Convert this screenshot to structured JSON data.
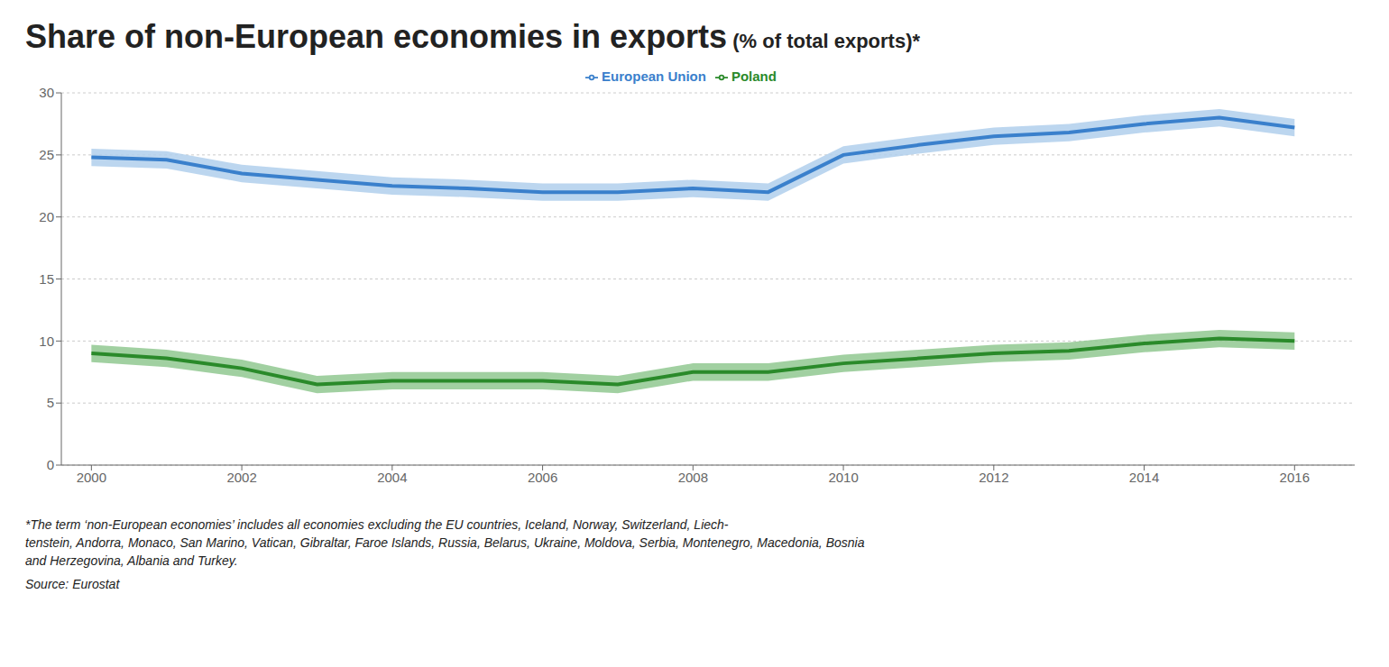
{
  "chart_data": {
    "type": "line",
    "title": "Share of non-European economies in exports",
    "subtitle": " (% of total exports)*",
    "footnotes": [
      "*The term ‘non-European economies’ includes all economies excluding the EU countries, Iceland, Norway, Switzerland, Liech-",
      "tenstein, Andorra, Monaco, San Marino, Vatican, Gibraltar, Faroe Islands, Russia, Belarus, Ukraine, Moldova, Serbia, Montenegro, Macedonia, Bosnia",
      "and Herzegovina, Albania and Turkey."
    ],
    "source": "Source: Eurostat",
    "x": [
      2000,
      2001,
      2002,
      2003,
      2004,
      2005,
      2006,
      2007,
      2008,
      2009,
      2010,
      2011,
      2012,
      2013,
      2014,
      2015,
      2016
    ],
    "series": [
      {
        "name": "European Union",
        "color": "#3a80cc",
        "band_color": "#b0cfec",
        "values": [
          24.8,
          24.6,
          23.5,
          23.0,
          22.5,
          22.3,
          22.0,
          22.0,
          22.3,
          22.0,
          25.0,
          25.8,
          26.5,
          26.8,
          27.5,
          28.0,
          27.2
        ],
        "band_upper": [
          25.5,
          25.3,
          24.2,
          23.7,
          23.2,
          23.0,
          22.7,
          22.7,
          23.0,
          22.7,
          25.7,
          26.5,
          27.2,
          27.5,
          28.2,
          28.7,
          27.9
        ],
        "band_lower": [
          24.1,
          23.9,
          22.8,
          22.3,
          21.8,
          21.6,
          21.3,
          21.3,
          21.6,
          21.3,
          24.3,
          25.1,
          25.8,
          26.1,
          26.8,
          27.3,
          26.5
        ]
      },
      {
        "name": "Poland",
        "color": "#2a8a2a",
        "band_color": "#90c890",
        "values": [
          9.0,
          8.6,
          7.8,
          6.5,
          6.8,
          6.8,
          6.8,
          6.5,
          7.5,
          7.5,
          8.2,
          8.6,
          9.0,
          9.2,
          9.8,
          10.2,
          10.0
        ],
        "band_upper": [
          9.7,
          9.3,
          8.5,
          7.2,
          7.5,
          7.5,
          7.5,
          7.2,
          8.2,
          8.2,
          8.9,
          9.3,
          9.7,
          9.9,
          10.5,
          10.9,
          10.7
        ],
        "band_lower": [
          8.3,
          7.9,
          7.1,
          5.8,
          6.1,
          6.1,
          6.1,
          5.8,
          6.8,
          6.8,
          7.5,
          7.9,
          8.3,
          8.5,
          9.1,
          9.5,
          9.3
        ]
      }
    ],
    "xlim": [
      1999.6,
      2016.8
    ],
    "xticks": [
      2000,
      2002,
      2004,
      2006,
      2008,
      2010,
      2012,
      2014,
      2016
    ],
    "ylim": [
      0,
      30
    ],
    "yticks": [
      0,
      5,
      10,
      15,
      20,
      25,
      30
    ],
    "grid": true,
    "legend": "top"
  }
}
